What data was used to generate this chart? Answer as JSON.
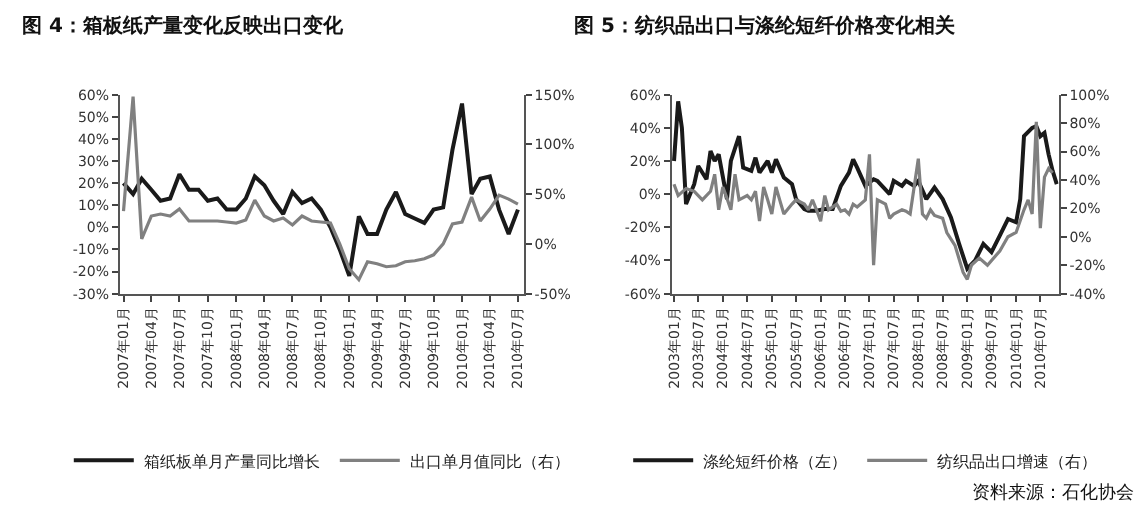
{
  "chart_data": [
    {
      "type": "line",
      "title": "图 4：箱板纸产量变化反映出口变化",
      "legend": "bottom",
      "x": [
        "2007-01",
        "2007-02",
        "2007-03",
        "2007-04",
        "2007-05",
        "2007-06",
        "2007-07",
        "2007-08",
        "2007-09",
        "2007-10",
        "2007-11",
        "2007-12",
        "2008-01",
        "2008-02",
        "2008-03",
        "2008-04",
        "2008-05",
        "2008-06",
        "2008-07",
        "2008-08",
        "2008-09",
        "2008-10",
        "2008-11",
        "2008-12",
        "2009-01",
        "2009-02",
        "2009-03",
        "2009-04",
        "2009-05",
        "2009-06",
        "2009-07",
        "2009-08",
        "2009-09",
        "2009-10",
        "2009-11",
        "2009-12",
        "2010-01",
        "2010-02",
        "2010-03",
        "2010-04",
        "2010-05",
        "2010-06",
        "2010-07"
      ],
      "series": [
        {
          "name": "箱纸板单月产量同比增长",
          "color": "#1a1a1a",
          "values": [
            20,
            15,
            22,
            17,
            12,
            13,
            24,
            17,
            17,
            12,
            13,
            8,
            8,
            13,
            23,
            19,
            12,
            6,
            16,
            11,
            13,
            8,
            0,
            -10,
            -22,
            5,
            -3,
            -3,
            8,
            16,
            6,
            4,
            2,
            8,
            9,
            35,
            56,
            15,
            22,
            23,
            8,
            -3,
            8
          ]
        },
        {
          "name": "出口单月值同比（右）",
          "color": "#808080",
          "axis": "y2",
          "values": [
            33,
            148,
            5,
            28,
            30,
            28,
            35,
            23,
            23,
            23,
            23,
            22,
            21,
            24,
            44,
            28,
            23,
            26,
            19,
            28,
            23,
            22,
            21,
            0,
            -25,
            -36,
            -18,
            -20,
            -23,
            -22,
            -18,
            -17,
            -15,
            -11,
            0,
            20,
            22,
            47,
            23,
            35,
            49,
            45,
            40
          ]
        }
      ],
      "xlim": [
        "2006-12-20",
        "2010-07-20"
      ],
      "xticks": [
        {
          "value": "2007-01",
          "label": "2007年01月"
        },
        {
          "value": "2007-04",
          "label": "2007年04月"
        },
        {
          "value": "2007-07",
          "label": "2007年07月"
        },
        {
          "value": "2007-10",
          "label": "2007年10月"
        },
        {
          "value": "2008-01",
          "label": "2008年01月"
        },
        {
          "value": "2008-04",
          "label": "2008年04月"
        },
        {
          "value": "2008-07",
          "label": "2008年07月"
        },
        {
          "value": "2008-10",
          "label": "2008年10月"
        },
        {
          "value": "2009-01",
          "label": "2009年01月"
        },
        {
          "value": "2009-04",
          "label": "2009年04月"
        },
        {
          "value": "2009-07",
          "label": "2009年07月"
        },
        {
          "value": "2009-10",
          "label": "2009年10月"
        },
        {
          "value": "2010-01",
          "label": "2010年01月"
        },
        {
          "value": "2010-04",
          "label": "2010年04月"
        },
        {
          "value": "2010-07",
          "label": "2010年07月"
        }
      ],
      "ylim": [
        -30,
        60
      ],
      "yticks": [
        {
          "value": -30,
          "label": "-30%"
        },
        {
          "value": -20,
          "label": "-20%"
        },
        {
          "value": -10,
          "label": "-10%"
        },
        {
          "value": 0,
          "label": "0%"
        },
        {
          "value": 10,
          "label": "10%"
        },
        {
          "value": 20,
          "label": "20%"
        },
        {
          "value": 30,
          "label": "30%"
        },
        {
          "value": 40,
          "label": "40%"
        },
        {
          "value": 50,
          "label": "50%"
        },
        {
          "value": 60,
          "label": "60%"
        }
      ],
      "y2lim": [
        -50,
        150
      ],
      "y2ticks": [
        {
          "value": -50,
          "label": "-50%"
        },
        {
          "value": 0,
          "label": "0%"
        },
        {
          "value": 50,
          "label": "50%"
        },
        {
          "value": 100,
          "label": "100%"
        },
        {
          "value": 150,
          "label": "150%"
        }
      ]
    },
    {
      "type": "line",
      "title": "图 5：纺织品出口与涤纶短纤价格变化相关",
      "legend": "bottom",
      "annotations": [
        "资料来源：石化协会"
      ],
      "series": [
        {
          "name": "涤纶短纤价格（左）",
          "color": "#1a1a1a",
          "x": [
            "2003-01",
            "2003-02",
            "2003-03",
            "2003-04",
            "2003-06",
            "2003-07",
            "2003-09",
            "2003-10",
            "2003-11",
            "2003-12",
            "2004-02",
            "2004-03",
            "2004-05",
            "2004-06",
            "2004-08",
            "2004-09",
            "2004-10",
            "2004-12",
            "2005-01",
            "2005-02",
            "2005-04",
            "2005-06",
            "2005-07",
            "2005-09",
            "2005-10",
            "2005-12",
            "2006-02",
            "2006-04",
            "2006-06",
            "2006-08",
            "2006-09",
            "2006-10",
            "2006-12",
            "2007-02",
            "2007-03",
            "2007-06",
            "2007-07",
            "2007-09",
            "2007-10",
            "2007-12",
            "2008-01",
            "2008-03",
            "2008-05",
            "2008-07",
            "2008-09",
            "2008-11",
            "2009-01",
            "2009-03",
            "2009-05",
            "2009-07",
            "2009-09",
            "2009-11",
            "2010-01",
            "2010-02",
            "2010-03",
            "2010-05",
            "2010-06",
            "2010-07",
            "2010-08",
            "2010-09",
            "2010-10",
            "2010-11"
          ],
          "values": [
            20,
            56,
            40,
            -6,
            6,
            17,
            9,
            26,
            20,
            24,
            -3,
            20,
            35,
            16,
            14,
            22,
            13,
            20,
            13,
            21,
            10,
            6,
            -3,
            -9,
            -10,
            -10,
            -9,
            -9,
            5,
            13,
            21,
            16,
            5,
            9,
            8,
            0,
            8,
            5,
            8,
            5,
            8,
            -3,
            4,
            -3,
            -14,
            -30,
            -45,
            -40,
            -30,
            -35,
            -25,
            -15,
            -17,
            -3,
            35,
            40,
            41,
            35,
            37,
            24,
            14,
            6
          ]
        },
        {
          "name": "纺织品出口增速（右）",
          "color": "#808080",
          "axis": "y2",
          "x": [
            "2003-01",
            "2003-02",
            "2003-04",
            "2003-06",
            "2003-08",
            "2003-10",
            "2003-11",
            "2003-12",
            "2004-01",
            "2004-02",
            "2004-03",
            "2004-04",
            "2004-05",
            "2004-07",
            "2004-08",
            "2004-09",
            "2004-10",
            "2004-11",
            "2004-12",
            "2005-01",
            "2005-02",
            "2005-03",
            "2005-04",
            "2005-06",
            "2005-07",
            "2005-09",
            "2005-10",
            "2005-11",
            "2005-12",
            "2006-01",
            "2006-02",
            "2006-03",
            "2006-05",
            "2006-06",
            "2006-07",
            "2006-08",
            "2006-09",
            "2006-10",
            "2006-12",
            "2007-01",
            "2007-02",
            "2007-03",
            "2007-05",
            "2007-06",
            "2007-07",
            "2007-09",
            "2007-10",
            "2007-11",
            "2007-12",
            "2008-01",
            "2008-02",
            "2008-03",
            "2008-04",
            "2008-05",
            "2008-07",
            "2008-08",
            "2008-10",
            "2008-12",
            "2009-01",
            "2009-02",
            "2009-04",
            "2009-06",
            "2009-09",
            "2009-11",
            "2010-01",
            "2010-03",
            "2010-04",
            "2010-05",
            "2010-06",
            "2010-07",
            "2010-08",
            "2010-09",
            "2010-10"
          ],
          "values": [
            37,
            29,
            34,
            32,
            26,
            32,
            44,
            19,
            35,
            27,
            19,
            44,
            26,
            29,
            26,
            32,
            11,
            35,
            26,
            16,
            35,
            26,
            16,
            23,
            26,
            23,
            19,
            26,
            19,
            11,
            29,
            19,
            23,
            18,
            19,
            16,
            23,
            21,
            26,
            58,
            -20,
            26,
            23,
            13,
            16,
            19,
            18,
            16,
            35,
            55,
            16,
            13,
            19,
            15,
            13,
            3,
            -6,
            -25,
            -30,
            -20,
            -15,
            -20,
            -10,
            0,
            3,
            19,
            26,
            16,
            81,
            6,
            42,
            48,
            45
          ]
        }
      ],
      "xlim": [
        "2002-12-15",
        "2010-11-15"
      ],
      "xticks": [
        {
          "value": "2003-01",
          "label": "2003年01月"
        },
        {
          "value": "2003-07",
          "label": "2003年07月"
        },
        {
          "value": "2004-01",
          "label": "2004年01月"
        },
        {
          "value": "2004-07",
          "label": "2004年07月"
        },
        {
          "value": "2005-01",
          "label": "2005年01月"
        },
        {
          "value": "2005-07",
          "label": "2005年07月"
        },
        {
          "value": "2006-01",
          "label": "2006年01月"
        },
        {
          "value": "2006-07",
          "label": "2006年07月"
        },
        {
          "value": "2007-01",
          "label": "2007年01月"
        },
        {
          "value": "2007-07",
          "label": "2007年07月"
        },
        {
          "value": "2008-01",
          "label": "2008年01月"
        },
        {
          "value": "2008-07",
          "label": "2008年07月"
        },
        {
          "value": "2009-01",
          "label": "2009年01月"
        },
        {
          "value": "2009-07",
          "label": "2009年07月"
        },
        {
          "value": "2010-01",
          "label": "2010年01月"
        },
        {
          "value": "2010-07",
          "label": "2010年07月"
        }
      ],
      "ylim": [
        -60,
        60
      ],
      "yticks": [
        {
          "value": -60,
          "label": "-60%"
        },
        {
          "value": -40,
          "label": "-40%"
        },
        {
          "value": -20,
          "label": "-20%"
        },
        {
          "value": 0,
          "label": "0%"
        },
        {
          "value": 20,
          "label": "20%"
        },
        {
          "value": 40,
          "label": "40%"
        },
        {
          "value": 60,
          "label": "60%"
        }
      ],
      "y2lim": [
        -40,
        100
      ],
      "y2ticks": [
        {
          "value": -40,
          "label": "-40%"
        },
        {
          "value": -20,
          "label": "-20%"
        },
        {
          "value": 0,
          "label": "0%"
        },
        {
          "value": 20,
          "label": "20%"
        },
        {
          "value": 40,
          "label": "40%"
        },
        {
          "value": 60,
          "label": "60%"
        },
        {
          "value": 80,
          "label": "80%"
        },
        {
          "value": 100,
          "label": "100%"
        }
      ]
    }
  ]
}
